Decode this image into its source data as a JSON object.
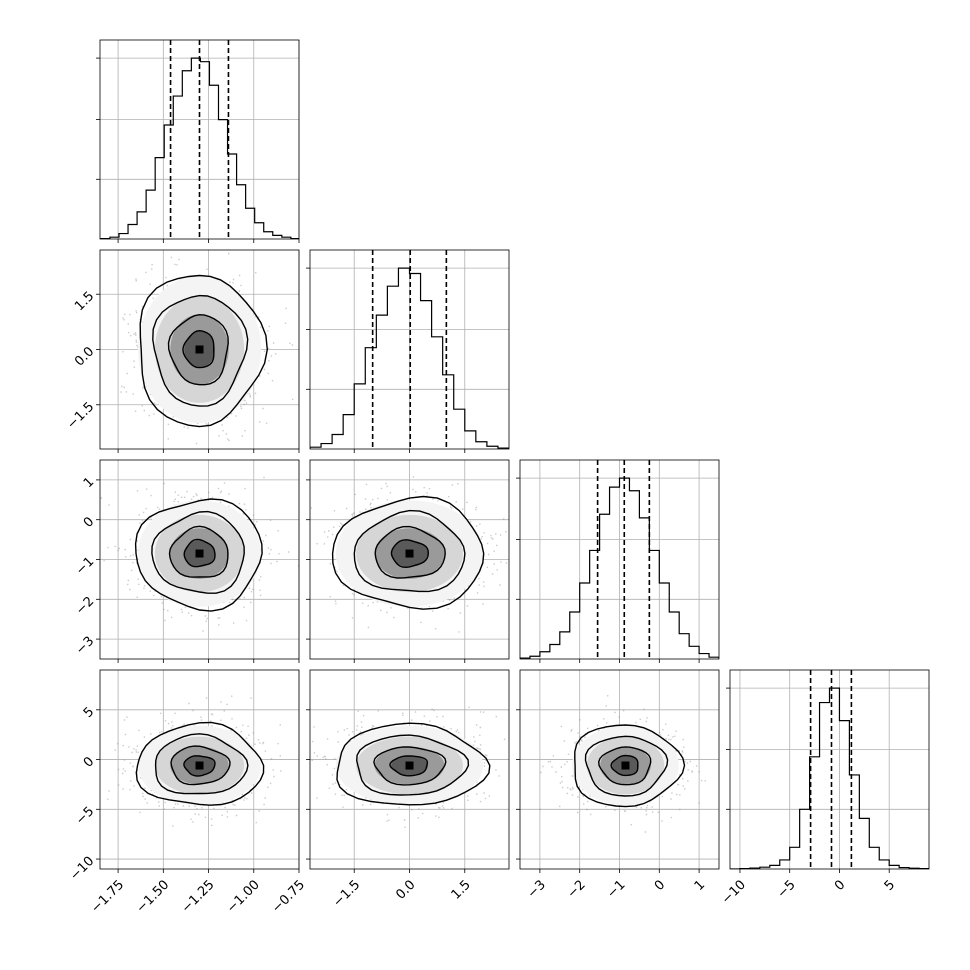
{
  "chart_data": {
    "type": "corner",
    "grid": true,
    "n_params": 4,
    "params": [
      {
        "range": [
          -1.85,
          -0.75
        ],
        "hist_x": [
          -1.82,
          -1.77,
          -1.72,
          -1.67,
          -1.62,
          -1.57,
          -1.52,
          -1.47,
          -1.42,
          -1.37,
          -1.32,
          -1.27,
          -1.22,
          -1.17,
          -1.12,
          -1.07,
          -1.02,
          -0.97,
          -0.92,
          -0.87,
          -0.82,
          -0.77
        ],
        "hist_counts": [
          0.002,
          0.01,
          0.03,
          0.08,
          0.15,
          0.27,
          0.45,
          0.63,
          0.79,
          0.93,
          1.0,
          0.98,
          0.85,
          0.66,
          0.47,
          0.3,
          0.17,
          0.09,
          0.04,
          0.02,
          0.01,
          0.002
        ],
        "quantiles": [
          -1.46,
          -1.3,
          -1.14
        ],
        "ticks": [
          -1.75,
          -1.5,
          -1.25,
          -1.0,
          -0.75
        ],
        "tick_labels": [
          "−1.75",
          "−1.50",
          "−1.25",
          "−1.00",
          "−0.75"
        ],
        "grid_ticks": [
          -1.75,
          -1.5,
          -1.25,
          -1.0,
          -0.75
        ],
        "scatter_center": -1.3,
        "scatter_sd": 0.17
      },
      {
        "range": [
          -2.7,
          2.7
        ],
        "hist_x": [
          -2.55,
          -2.25,
          -1.95,
          -1.65,
          -1.35,
          -1.05,
          -0.75,
          -0.45,
          -0.15,
          0.15,
          0.45,
          0.75,
          1.05,
          1.35,
          1.65,
          1.95,
          2.25,
          2.55
        ],
        "hist_counts": [
          0.01,
          0.03,
          0.08,
          0.19,
          0.36,
          0.56,
          0.74,
          0.9,
          1.0,
          0.97,
          0.82,
          0.62,
          0.41,
          0.22,
          0.1,
          0.04,
          0.015,
          0.005
        ],
        "quantiles": [
          -1.0,
          0.02,
          1.0
        ],
        "ticks": [
          -1.5,
          0.0,
          1.5
        ],
        "tick_labels": [
          "−1.5",
          "0.0",
          "1.5"
        ],
        "grid_ticks": [
          -1.5,
          0.0,
          1.5
        ],
        "scatter_center": 0.0,
        "scatter_sd": 1.0
      },
      {
        "range": [
          -3.5,
          1.5
        ],
        "hist_x": [
          -3.375,
          -3.125,
          -2.875,
          -2.625,
          -2.375,
          -2.125,
          -1.875,
          -1.625,
          -1.375,
          -1.125,
          -0.875,
          -0.625,
          -0.375,
          -0.125,
          0.125,
          0.375,
          0.625,
          0.875,
          1.125,
          1.375
        ],
        "hist_counts": [
          0.005,
          0.015,
          0.04,
          0.08,
          0.15,
          0.26,
          0.42,
          0.6,
          0.8,
          0.95,
          1.0,
          0.93,
          0.78,
          0.6,
          0.42,
          0.26,
          0.14,
          0.07,
          0.03,
          0.01
        ],
        "quantiles": [
          -1.55,
          -0.88,
          -0.25
        ],
        "ticks": [
          -3,
          -2,
          -1,
          0,
          1
        ],
        "tick_labels": [
          "−3",
          "−2",
          "−1",
          "0",
          "1"
        ],
        "grid_ticks": [
          -3,
          -2,
          -1,
          0,
          1
        ],
        "scatter_center": -0.85,
        "scatter_sd": 0.67
      },
      {
        "range": [
          -11,
          9
        ],
        "hist_x": [
          -10.5,
          -9.5,
          -8.5,
          -7.5,
          -6.5,
          -5.5,
          -4.5,
          -3.5,
          -2.5,
          -1.5,
          -0.5,
          0.5,
          1.5,
          2.5,
          3.5,
          4.5,
          5.5,
          6.5,
          7.5,
          8.5
        ],
        "hist_counts": [
          0.0,
          0.002,
          0.005,
          0.01,
          0.02,
          0.05,
          0.12,
          0.33,
          0.62,
          0.92,
          1.0,
          0.82,
          0.52,
          0.28,
          0.12,
          0.05,
          0.02,
          0.008,
          0.004,
          0.002
        ],
        "quantiles": [
          -2.9,
          -0.8,
          1.2
        ],
        "ticks": [
          -10,
          -5,
          0,
          5
        ],
        "tick_labels": [
          "−10",
          "−5",
          "0",
          "5"
        ],
        "grid_ticks": [
          -10,
          -5,
          0,
          5
        ],
        "scatter_center": -0.6,
        "scatter_sd": 2.0
      }
    ],
    "hist_y_ticks": [
      0.33,
      0.66,
      1.0
    ]
  }
}
